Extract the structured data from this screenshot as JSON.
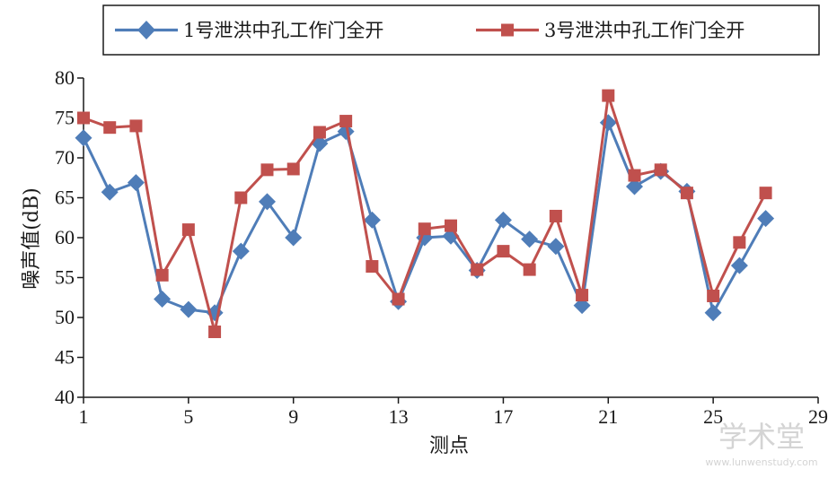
{
  "chart_data": {
    "type": "line",
    "title": "",
    "xlabel": "测点",
    "ylabel": "噪声值(dB)",
    "xlim": [
      1,
      29
    ],
    "ylim": [
      40,
      80
    ],
    "x_ticks": [
      1,
      5,
      9,
      13,
      17,
      21,
      25,
      29
    ],
    "y_ticks": [
      40,
      45,
      50,
      55,
      60,
      65,
      70,
      75,
      80
    ],
    "grid": false,
    "legend_position": "top",
    "x": [
      1,
      2,
      3,
      4,
      5,
      6,
      7,
      8,
      9,
      10,
      11,
      12,
      13,
      14,
      15,
      16,
      17,
      18,
      19,
      20,
      21,
      22,
      23,
      24,
      25,
      26,
      27
    ],
    "series": [
      {
        "name": "1号泄洪中孔工作门全开",
        "color": "#4f7db8",
        "marker": "diamond",
        "values": [
          72.5,
          65.7,
          66.9,
          52.3,
          51.0,
          50.6,
          58.3,
          64.5,
          60.0,
          71.8,
          73.3,
          62.2,
          52.0,
          60.0,
          60.2,
          55.9,
          62.2,
          59.8,
          58.9,
          51.5,
          74.4,
          66.4,
          68.3,
          65.8,
          50.6,
          56.5,
          62.4
        ]
      },
      {
        "name": "3号泄洪中孔工作门全开",
        "color": "#c0504d",
        "marker": "square",
        "values": [
          75.0,
          73.8,
          74.0,
          55.3,
          61.0,
          48.2,
          65.0,
          68.5,
          68.6,
          73.2,
          74.6,
          56.4,
          52.3,
          61.1,
          61.5,
          56.0,
          58.3,
          56.0,
          62.7,
          52.8,
          77.8,
          67.8,
          68.5,
          65.6,
          52.7,
          59.4,
          65.6
        ]
      }
    ]
  },
  "watermark": {
    "title": "学术堂",
    "url": "www.lunwenstudy.com"
  }
}
